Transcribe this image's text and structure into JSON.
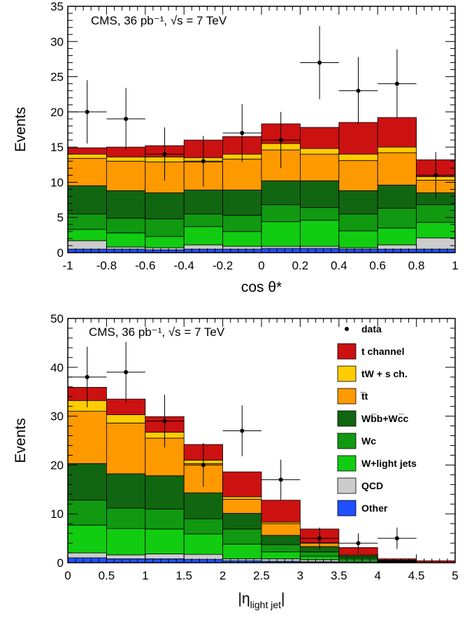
{
  "chart_data": [
    {
      "type": "bar",
      "stacked": true,
      "annotation": "CMS, 36 pb⁻¹, √s = 7 TeV",
      "xlabel": "cos θ*",
      "ylabel": "Events",
      "xlim": [
        -1,
        1
      ],
      "ylim": [
        0,
        35
      ],
      "xticks": [
        "-1",
        "-0.8",
        "-0.6",
        "-0.4",
        "-0.2",
        "0",
        "0.2",
        "0.4",
        "0.6",
        "0.8",
        "1"
      ],
      "yticks": [
        "0",
        "5",
        "10",
        "15",
        "20",
        "25",
        "30",
        "35"
      ],
      "bin_edges": [
        -1,
        -0.8,
        -0.6,
        -0.4,
        -0.2,
        0,
        0.2,
        0.4,
        0.6,
        0.8,
        1
      ],
      "series": [
        {
          "name": "Other",
          "color": "#1f4fff",
          "values": [
            0.5,
            0.5,
            0.4,
            0.5,
            0.5,
            0.6,
            0.6,
            0.5,
            0.5,
            0.5
          ]
        },
        {
          "name": "QCD",
          "color": "#cccccc",
          "values": [
            1.2,
            0.3,
            0.3,
            0.6,
            0.4,
            0.3,
            0.3,
            0.2,
            0.6,
            1.6
          ]
        },
        {
          "name": "W+light jets",
          "color": "#11cc11",
          "values": [
            1.6,
            2.0,
            1.6,
            2.6,
            2.1,
            3.5,
            3.7,
            2.4,
            2.4,
            2.2
          ]
        },
        {
          "name": "Wc",
          "color": "#119911",
          "values": [
            2.2,
            2.1,
            2.5,
            1.8,
            2.3,
            2.4,
            1.8,
            2.4,
            2.8,
            2.5
          ]
        },
        {
          "name": "Wb̅b+Wc̅c",
          "color": "#116611",
          "values": [
            4.0,
            3.9,
            3.7,
            3.4,
            3.6,
            3.4,
            3.8,
            3.3,
            3.3,
            1.7
          ]
        },
        {
          "name": "t̅t",
          "color": "#ff9900",
          "values": [
            3.9,
            4.2,
            4.4,
            4.0,
            4.4,
            4.4,
            3.8,
            4.3,
            4.6,
            1.8
          ]
        },
        {
          "name": "tW + s ch.",
          "color": "#ffcc00",
          "values": [
            0.6,
            0.6,
            0.7,
            0.6,
            0.7,
            0.9,
            0.8,
            0.9,
            0.8,
            0.5
          ]
        },
        {
          "name": "t channel",
          "color": "#cc1111",
          "values": [
            0.9,
            1.4,
            1.6,
            2.5,
            2.5,
            2.8,
            3.0,
            4.5,
            4.2,
            2.4
          ]
        }
      ],
      "data": {
        "name": "data",
        "x": [
          -0.9,
          -0.7,
          -0.5,
          -0.3,
          -0.1,
          0.1,
          0.3,
          0.5,
          0.7,
          0.9
        ],
        "y": [
          20,
          19,
          14,
          13,
          17,
          16,
          27,
          23,
          24,
          11
        ],
        "yerr_low": [
          4.5,
          4.4,
          3.8,
          3.6,
          4.1,
          4.0,
          5.2,
          4.8,
          4.9,
          3.3
        ],
        "yerr_high": [
          4.5,
          4.4,
          3.8,
          3.6,
          4.1,
          4.0,
          5.2,
          4.8,
          4.9,
          3.3
        ]
      }
    },
    {
      "type": "bar",
      "stacked": true,
      "annotation": "CMS, 36 pb⁻¹, √s = 7 TeV",
      "xlabel": "|ηlight jet|",
      "xlabel_main": "|η",
      "xlabel_sub": "light jet",
      "xlabel_end": "|",
      "ylabel": "Events",
      "xlim": [
        0,
        5
      ],
      "ylim": [
        0,
        50
      ],
      "xticks": [
        "0",
        "0.5",
        "1",
        "1.5",
        "2",
        "2.5",
        "3",
        "3.5",
        "4",
        "4.5",
        "5"
      ],
      "yticks": [
        "0",
        "10",
        "20",
        "30",
        "40",
        "50"
      ],
      "bin_edges": [
        0,
        0.5,
        1,
        1.5,
        2,
        2.5,
        3,
        3.5,
        4,
        4.5,
        5
      ],
      "series": [
        {
          "name": "Other",
          "color": "#1f4fff",
          "values": [
            1.0,
            0.8,
            0.8,
            0.7,
            0.4,
            0.3,
            0.2,
            0.1,
            0.0,
            0.0
          ]
        },
        {
          "name": "QCD",
          "color": "#cccccc",
          "values": [
            1.0,
            0.8,
            1.0,
            1.0,
            0.4,
            0.5,
            0.4,
            0.2,
            0.1,
            0.0
          ]
        },
        {
          "name": "W+light jets",
          "color": "#11cc11",
          "values": [
            5.7,
            5.4,
            5.1,
            4.2,
            3.0,
            1.4,
            0.7,
            0.4,
            0.1,
            0.0
          ]
        },
        {
          "name": "Wc",
          "color": "#119911",
          "values": [
            5.1,
            4.2,
            4.1,
            3.1,
            3.1,
            1.5,
            0.9,
            0.3,
            0.1,
            0.0
          ]
        },
        {
          "name": "Wb̅b+Wc̅c",
          "color": "#116611",
          "values": [
            7.5,
            7.0,
            6.8,
            5.3,
            3.2,
            1.9,
            1.1,
            0.4,
            0.1,
            0.0
          ]
        },
        {
          "name": "t̅t",
          "color": "#ff9900",
          "values": [
            10.7,
            10.4,
            7.7,
            6.0,
            2.9,
            2.4,
            0.7,
            0.2,
            0.1,
            0.0
          ]
        },
        {
          "name": "tW + s ch.",
          "color": "#ffcc00",
          "values": [
            2.2,
            1.7,
            1.2,
            0.7,
            0.5,
            0.3,
            0.1,
            0.0,
            0.0,
            0.0
          ]
        },
        {
          "name": "t channel",
          "color": "#cc1111",
          "values": [
            2.7,
            3.2,
            3.2,
            3.2,
            5.1,
            4.5,
            2.8,
            1.5,
            0.3,
            0.4
          ]
        }
      ],
      "data": {
        "name": "data",
        "x": [
          0.25,
          0.75,
          1.25,
          1.75,
          2.25,
          2.75,
          3.25,
          3.75,
          4.25
        ],
        "y": [
          38,
          39,
          29,
          20,
          27,
          17,
          5,
          4,
          5
        ],
        "yerr_low": [
          6.2,
          6.2,
          5.4,
          4.5,
          5.2,
          4.1,
          2.2,
          2.0,
          2.2
        ],
        "yerr_high": [
          6.2,
          6.2,
          5.4,
          4.5,
          5.2,
          4.1,
          2.2,
          2.0,
          2.2
        ]
      },
      "legend": {
        "placement": "top-right",
        "items": [
          {
            "label": "data",
            "marker": "point",
            "color": "#000000"
          },
          {
            "label": "t channel",
            "color": "#cc1111"
          },
          {
            "label": "tW + s ch.",
            "color": "#ffcc00"
          },
          {
            "label": "t̅t",
            "color": "#ff9900"
          },
          {
            "label": "Wb̅b+Wc̅c",
            "color": "#116611"
          },
          {
            "label": "Wc",
            "color": "#119911"
          },
          {
            "label": "W+light jets",
            "color": "#11cc11"
          },
          {
            "label": "QCD",
            "color": "#cccccc"
          },
          {
            "label": "Other",
            "color": "#1f4fff"
          }
        ]
      }
    }
  ]
}
